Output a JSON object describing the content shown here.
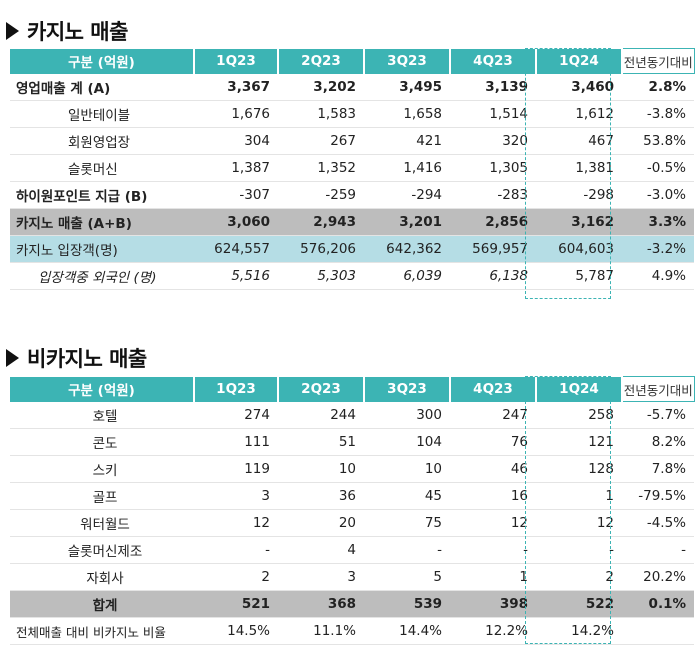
{
  "casino": {
    "title": "카지노 매출",
    "headers": [
      "구분 (억원)",
      "1Q23",
      "2Q23",
      "3Q23",
      "4Q23",
      "1Q24",
      "전년동기대비"
    ],
    "rows": [
      {
        "label": "영업매출 계 (A)",
        "values": [
          "3,367",
          "3,202",
          "3,495",
          "3,139",
          "3,460",
          "2.8%"
        ]
      },
      {
        "label": "일반테이블",
        "values": [
          "1,676",
          "1,583",
          "1,658",
          "1,514",
          "1,612",
          "-3.8%"
        ]
      },
      {
        "label": "회원영업장",
        "values": [
          "304",
          "267",
          "421",
          "320",
          "467",
          "53.8%"
        ]
      },
      {
        "label": "슬롯머신",
        "values": [
          "1,387",
          "1,352",
          "1,416",
          "1,305",
          "1,381",
          "-0.5%"
        ]
      },
      {
        "label": "하이원포인트 지급 (B)",
        "values": [
          "-307",
          "-259",
          "-294",
          "-283",
          "-298",
          "-3.0%"
        ]
      },
      {
        "label": "카지노 매출 (A+B)",
        "values": [
          "3,060",
          "2,943",
          "3,201",
          "2,856",
          "3,162",
          "3.3%"
        ]
      },
      {
        "label": "카지노 입장객(명)",
        "values": [
          "624,557",
          "576,206",
          "642,362",
          "569,957",
          "604,603",
          "-3.2%"
        ]
      },
      {
        "label": "입장객중 외국인 (명)",
        "values": [
          "5,516",
          "5,303",
          "6,039",
          "6,138",
          "5,787",
          "4.9%"
        ]
      }
    ]
  },
  "noncasino": {
    "title": "비카지노 매출",
    "headers": [
      "구분 (억원)",
      "1Q23",
      "2Q23",
      "3Q23",
      "4Q23",
      "1Q24",
      "전년동기대비"
    ],
    "rows": [
      {
        "label": "호텔",
        "values": [
          "274",
          "244",
          "300",
          "247",
          "258",
          "-5.7%"
        ]
      },
      {
        "label": "콘도",
        "values": [
          "111",
          "51",
          "104",
          "76",
          "121",
          "8.2%"
        ]
      },
      {
        "label": "스키",
        "values": [
          "119",
          "10",
          "10",
          "46",
          "128",
          "7.8%"
        ]
      },
      {
        "label": "골프",
        "values": [
          "3",
          "36",
          "45",
          "16",
          "1",
          "-79.5%"
        ]
      },
      {
        "label": "워터월드",
        "values": [
          "12",
          "20",
          "75",
          "12",
          "12",
          "-4.5%"
        ]
      },
      {
        "label": "슬롯머신제조",
        "values": [
          "-",
          "4",
          "-",
          "-",
          "-",
          "-"
        ]
      },
      {
        "label": "자회사",
        "values": [
          "2",
          "3",
          "5",
          "1",
          "2",
          "20.2%"
        ]
      },
      {
        "label": "합계",
        "values": [
          "521",
          "368",
          "539",
          "398",
          "522",
          "0.1%"
        ]
      },
      {
        "label": "전체매출 대비 비카지노 비율",
        "values": [
          "14.5%",
          "11.1%",
          "14.4%",
          "12.2%",
          "14.2%",
          ""
        ]
      }
    ]
  }
}
